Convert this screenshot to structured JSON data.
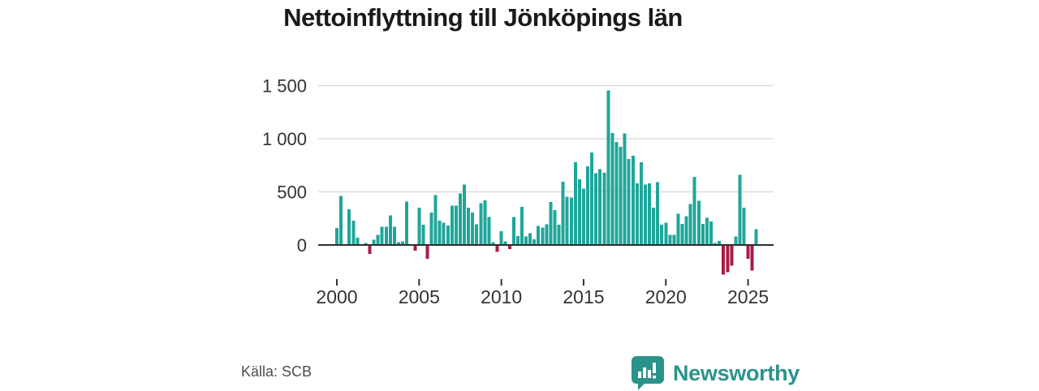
{
  "title": "Nettoinflyttning till Jönköpings län",
  "source": {
    "label": "Källa: SCB"
  },
  "brand": {
    "name": "Newsworthy"
  },
  "colors": {
    "positive_bar": "#1fa69a",
    "negative_bar": "#a81c45",
    "gridline": "#dddddd",
    "zero_line": "#2e2e2e",
    "axis_text": "#333333",
    "title_text": "#1a1a1a",
    "brand_teal": "#2a948b"
  },
  "chart_data": {
    "type": "bar",
    "title": "Nettoinflyttning till Jönköpings län",
    "frequency": "quarterly",
    "start": "2000-Q1",
    "end": "2025-Q3",
    "xlabel": "",
    "ylabel": "",
    "ylim": [
      -350,
      1550
    ],
    "grid": true,
    "legend": false,
    "y_ticks": [
      0,
      500,
      1000,
      1500
    ],
    "y_tick_labels": [
      "0",
      "500",
      "1 000",
      "1 500"
    ],
    "x_tick_years": [
      2000,
      2005,
      2010,
      2015,
      2020,
      2025
    ],
    "x_tick_labels": [
      "2000",
      "2005",
      "2010",
      "2015",
      "2020",
      "2025"
    ],
    "values": [
      160,
      460,
      5,
      335,
      230,
      70,
      5,
      20,
      -85,
      50,
      95,
      170,
      170,
      280,
      170,
      25,
      35,
      410,
      5,
      -55,
      350,
      190,
      -130,
      305,
      470,
      230,
      210,
      185,
      370,
      370,
      485,
      570,
      350,
      305,
      195,
      395,
      420,
      265,
      25,
      -65,
      130,
      35,
      -40,
      265,
      85,
      360,
      80,
      110,
      55,
      180,
      165,
      195,
      405,
      330,
      190,
      595,
      455,
      445,
      780,
      620,
      530,
      740,
      870,
      675,
      715,
      680,
      1455,
      1055,
      970,
      925,
      1050,
      810,
      840,
      580,
      780,
      570,
      580,
      350,
      590,
      190,
      210,
      95,
      95,
      295,
      200,
      270,
      385,
      640,
      415,
      200,
      255,
      220,
      20,
      40,
      -280,
      -255,
      -195,
      80,
      660,
      350,
      -130,
      -240,
      150
    ]
  }
}
